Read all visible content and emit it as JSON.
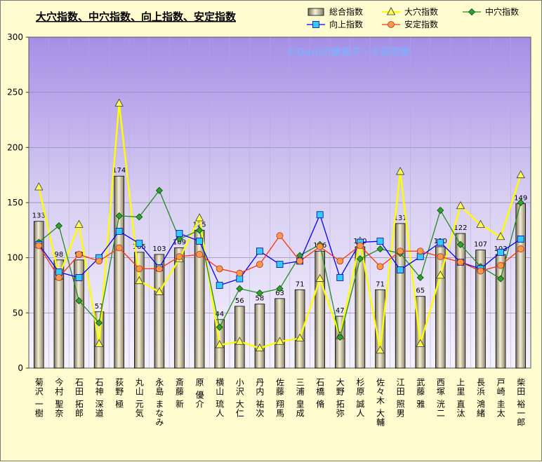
{
  "chart_data": {
    "type": "bar",
    "title": "大穴指数、中穴指数、向上指数、安定指数",
    "watermark": "©Ganiの競馬データ研究室",
    "ylim": [
      0,
      300
    ],
    "yticks": [
      0,
      50,
      100,
      150,
      200,
      250,
      300
    ],
    "grid": true,
    "legend_position": "top",
    "categories": [
      "菊沢 一樹",
      "今村 聖奈",
      "石田 拓郎",
      "石神 深道",
      "荻野 極",
      "丸山 元気",
      "永島 まなみ",
      "斎藤 新",
      "原 優介",
      "横山 琉人",
      "小沢 大仁",
      "丹内 祐次",
      "佐藤 翔馬",
      "三浦 皇成",
      "石橋 脩",
      "大野 拓弥",
      "杉原 誠人",
      "佐々木 大輔",
      "江田 照男",
      "武藤 雅",
      "西塚 洸二",
      "上里 直汰",
      "長浜 鴻緒",
      "戸崎 圭太",
      "柴田 裕一郎"
    ],
    "series": [
      {
        "name": "総合指数",
        "type": "bar",
        "color": "#d8d0a0",
        "values": [
          133,
          98,
          98,
          51,
          174,
          105,
          103,
          109,
          125,
          44,
          56,
          58,
          63,
          71,
          106,
          47,
          110,
          71,
          131,
          65,
          110,
          122,
          107,
          103,
          149
        ]
      },
      {
        "name": "大穴指数",
        "type": "line",
        "color": "#ffff00",
        "marker": "triangle",
        "values": [
          164,
          83,
          130,
          22,
          240,
          79,
          69,
          99,
          136,
          21,
          24,
          18,
          24,
          27,
          81,
          29,
          115,
          16,
          178,
          22,
          84,
          147,
          130,
          119,
          175
        ]
      },
      {
        "name": "中穴指数",
        "type": "line",
        "color": "#228b22",
        "marker": "diamond",
        "values": [
          114,
          129,
          61,
          41,
          138,
          137,
          161,
          117,
          125,
          37,
          72,
          68,
          72,
          102,
          112,
          28,
          99,
          108,
          104,
          82,
          143,
          112,
          92,
          81,
          150
        ]
      },
      {
        "name": "向上指数",
        "type": "line",
        "color": "#0000ff",
        "marker": "square",
        "values": [
          112,
          87,
          82,
          100,
          124,
          113,
          91,
          122,
          115,
          75,
          81,
          106,
          94,
          97,
          139,
          82,
          114,
          115,
          89,
          101,
          114,
          96,
          90,
          105,
          117
        ]
      },
      {
        "name": "安定指数",
        "type": "line",
        "color": "#ff3300",
        "marker": "circle",
        "values": [
          111,
          82,
          103,
          97,
          109,
          90,
          90,
          101,
          103,
          90,
          86,
          94,
          120,
          97,
          110,
          97,
          111,
          92,
          106,
          106,
          101,
          96,
          88,
          93,
          108
        ]
      }
    ],
    "bar_labels": [
      "133",
      "98",
      "98",
      "51",
      "174",
      "105",
      "103",
      "109",
      "125",
      "44",
      "56",
      "58",
      "63",
      "71",
      "106",
      "47",
      "110",
      "71",
      "131",
      "65",
      "110",
      "122",
      "107",
      "103",
      "149"
    ]
  }
}
